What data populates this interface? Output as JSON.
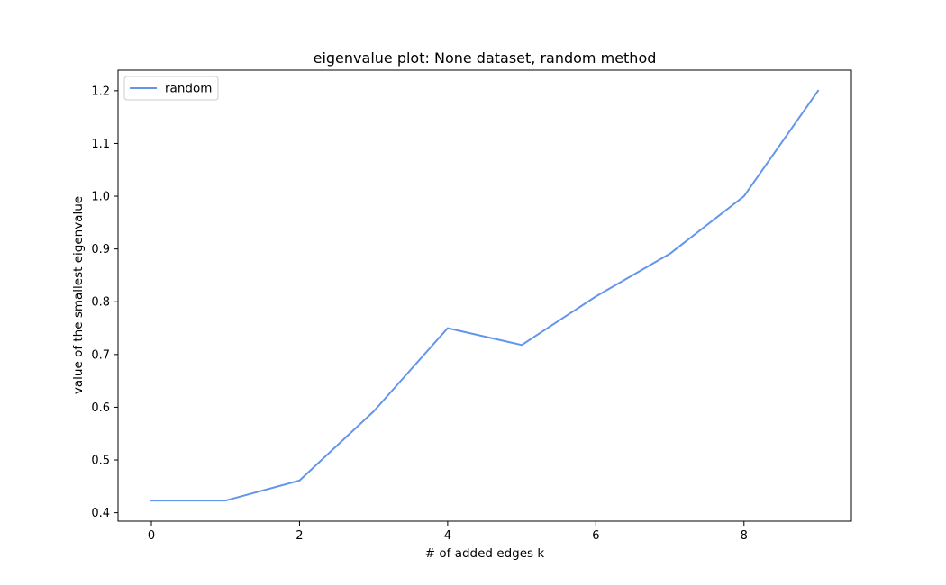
{
  "chart_data": {
    "type": "line",
    "title": "eigenvalue plot: None dataset, random method",
    "xlabel": "# of added edges k",
    "ylabel": "value of the smallest eigenvalue",
    "x": [
      0,
      1,
      2,
      3,
      4,
      5,
      6,
      7,
      8,
      9
    ],
    "series": [
      {
        "name": "random",
        "color": "#6495ed",
        "values": [
          0.423,
          0.423,
          0.461,
          0.592,
          0.75,
          0.718,
          0.81,
          0.891,
          1.0,
          1.2
        ]
      }
    ],
    "xlim": [
      -0.45,
      9.45
    ],
    "ylim": [
      0.384,
      1.239
    ],
    "xticks": [
      0,
      2,
      4,
      6,
      8
    ],
    "xtick_labels": [
      "0",
      "2",
      "4",
      "6",
      "8"
    ],
    "yticks": [
      0.4,
      0.5,
      0.6,
      0.7,
      0.8,
      0.9,
      1.0,
      1.1,
      1.2
    ],
    "ytick_labels": [
      "0.4",
      "0.5",
      "0.6",
      "0.7",
      "0.8",
      "0.9",
      "1.0",
      "1.1",
      "1.2"
    ],
    "grid": false,
    "legend_position": "upper-left"
  }
}
